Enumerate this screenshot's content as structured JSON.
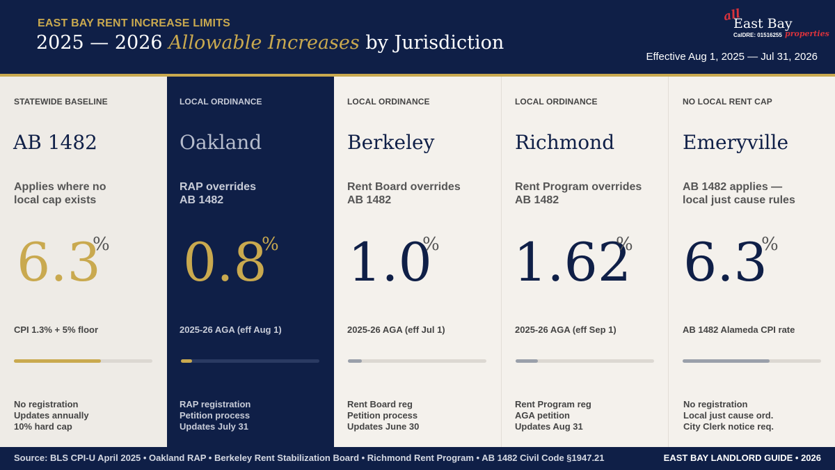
{
  "header": {
    "eyebrow": "EAST BAY RENT INCREASE LIMITS",
    "title_pre": "2025 — 2026 ",
    "title_accent": "Allowable Increases",
    "title_post": " by Jurisdiction",
    "effective": "Effective Aug 1, 2025 — Jul 31, 2026",
    "logo": {
      "all": "all",
      "name": "East Bay",
      "dre": "CalDRE: 01516255",
      "properties": "properties"
    }
  },
  "colors": {
    "navy": "#0f1f47",
    "gold": "#c9a94f",
    "gray_bar": "#9aa0aa",
    "logo_red": "#d8323c"
  },
  "jurisdictions": [
    {
      "category": "STATEWIDE BASELINE",
      "name": "AB 1482",
      "description_lines": [
        "Applies where no",
        "local cap exists"
      ],
      "rate": "6.3",
      "unit": "%",
      "note": "CPI 1.3% + 5% floor",
      "bar_fraction": 0.63,
      "bar_color": "#c9a94f",
      "details": [
        "No registration",
        "Updates annually",
        "10% hard cap"
      ]
    },
    {
      "category": "LOCAL ORDINANCE",
      "name": "Oakland",
      "description_lines": [
        "RAP overrides",
        "AB 1482"
      ],
      "rate": "0.8",
      "unit": "%",
      "note": "2025-26 AGA (eff Aug 1)",
      "bar_fraction": 0.08,
      "bar_color": "#c9a94f",
      "details": [
        "RAP registration",
        "Petition process",
        "Updates July 31"
      ]
    },
    {
      "category": "LOCAL ORDINANCE",
      "name": "Berkeley",
      "description_lines": [
        "Rent Board overrides",
        "AB 1482"
      ],
      "rate": "1.0",
      "unit": "%",
      "note": "2025-26 AGA (eff Jul 1)",
      "bar_fraction": 0.1,
      "bar_color": "#9aa0aa",
      "details": [
        "Rent Board reg",
        "Petition process",
        "Updates June 30"
      ]
    },
    {
      "category": "LOCAL ORDINANCE",
      "name": "Richmond",
      "description_lines": [
        "Rent Program overrides",
        "AB 1482"
      ],
      "rate": "1.62",
      "unit": "%",
      "note": "2025-26 AGA (eff Sep 1)",
      "bar_fraction": 0.16,
      "bar_color": "#9aa0aa",
      "details": [
        "Rent Program reg",
        "AGA petition",
        "Updates Aug 31"
      ]
    },
    {
      "category": "NO LOCAL RENT CAP",
      "name": "Emeryville",
      "description_lines": [
        "AB 1482 applies —",
        "local just cause rules"
      ],
      "rate": "6.3",
      "unit": "%",
      "note": "AB 1482 Alameda CPI rate",
      "bar_fraction": 0.63,
      "bar_color": "#9aa0aa",
      "details": [
        "No registration",
        "Local just cause ord.",
        "City Clerk notice req."
      ]
    }
  ],
  "footer": {
    "source": "Source: BLS CPI-U April 2025 • Oakland RAP • Berkeley Rent Stabilization Board • Richmond Rent Program • AB 1482 Civil Code §1947.21",
    "brand": "EAST BAY LANDLORD GUIDE • 2026"
  }
}
